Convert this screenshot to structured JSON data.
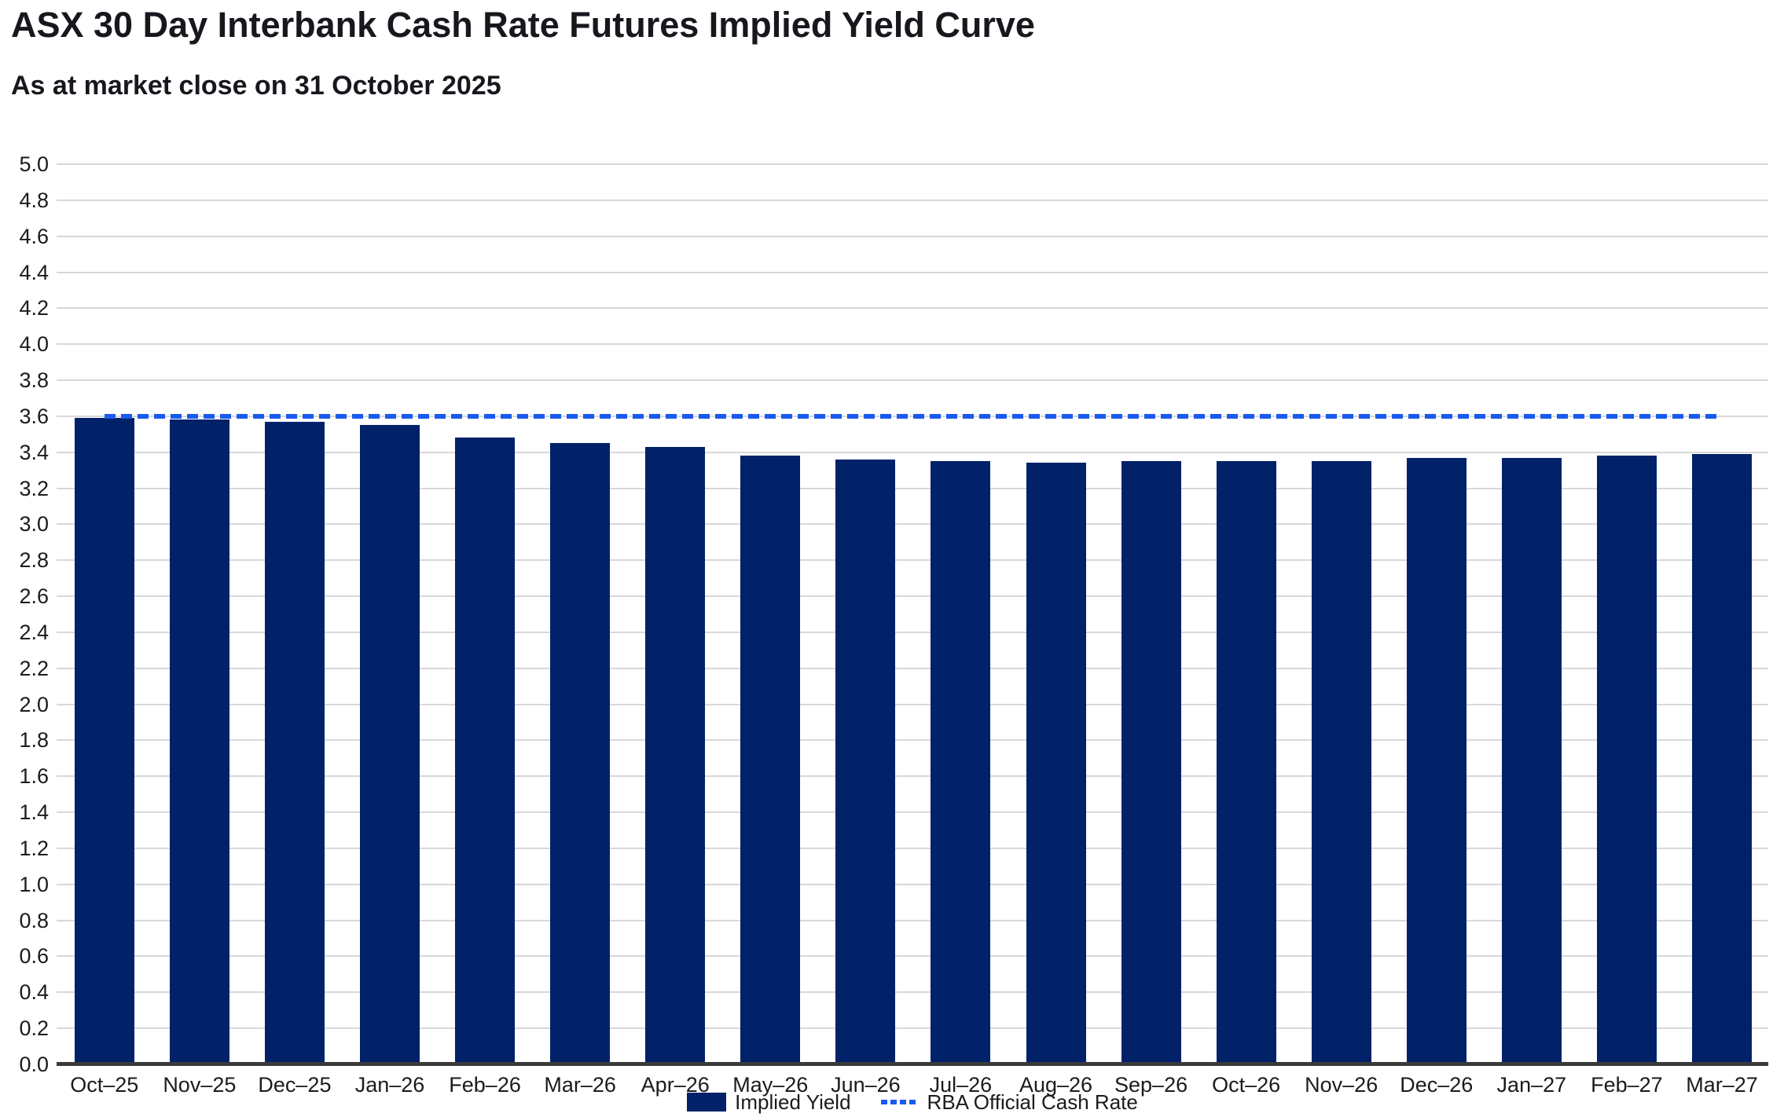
{
  "header": {
    "title": "ASX 30 Day Interbank Cash Rate Futures Implied Yield Curve",
    "subtitle": "As at market close on 31 October 2025"
  },
  "chart_data": {
    "type": "bar",
    "title": "ASX 30 Day Interbank Cash Rate Futures Implied Yield Curve",
    "subtitle": "As at market close on 31 October 2025",
    "categories": [
      "Oct–25",
      "Nov–25",
      "Dec–25",
      "Jan–26",
      "Feb–26",
      "Mar–26",
      "Apr–26",
      "May–26",
      "Jun–26",
      "Jul–26",
      "Aug–26",
      "Sep–26",
      "Oct–26",
      "Nov–26",
      "Dec–26",
      "Jan–27",
      "Feb–27",
      "Mar–27"
    ],
    "series": [
      {
        "name": "Implied Yield",
        "type": "bar",
        "values": [
          3.59,
          3.58,
          3.57,
          3.55,
          3.48,
          3.45,
          3.43,
          3.38,
          3.36,
          3.35,
          3.34,
          3.35,
          3.35,
          3.35,
          3.37,
          3.37,
          3.38,
          3.39
        ]
      },
      {
        "name": "RBA Official Cash Rate",
        "type": "dashed-line",
        "value": 3.6
      }
    ],
    "xlabel": "",
    "ylabel": "",
    "ylim": [
      0.0,
      5.0
    ],
    "ytick_step": 0.2,
    "ytick_labels": [
      "5.0",
      "4.8",
      "4.6",
      "4.4",
      "4.2",
      "4.0",
      "3.8",
      "3.6",
      "3.4",
      "3.2",
      "3.0",
      "2.8",
      "2.6",
      "2.4",
      "2.2",
      "2.0",
      "1.8",
      "1.6",
      "1.4",
      "1.2",
      "1.0",
      "0.8",
      "0.6",
      "0.4",
      "0.2",
      "0.0"
    ],
    "grid": true,
    "legend_position": "bottom-center"
  },
  "legend": {
    "items": [
      {
        "label": "Implied Yield",
        "swatch": "bar"
      },
      {
        "label": "RBA Official Cash Rate",
        "swatch": "dashed-line"
      }
    ]
  },
  "colors": {
    "bar": "#012169",
    "rba_line": "#1a5af0",
    "gridline": "#d8d8d8",
    "axis_line": "#3a3a3a",
    "tick_text": "#1b1b1b",
    "title_text": "#16181d",
    "background": "#ffffff"
  }
}
